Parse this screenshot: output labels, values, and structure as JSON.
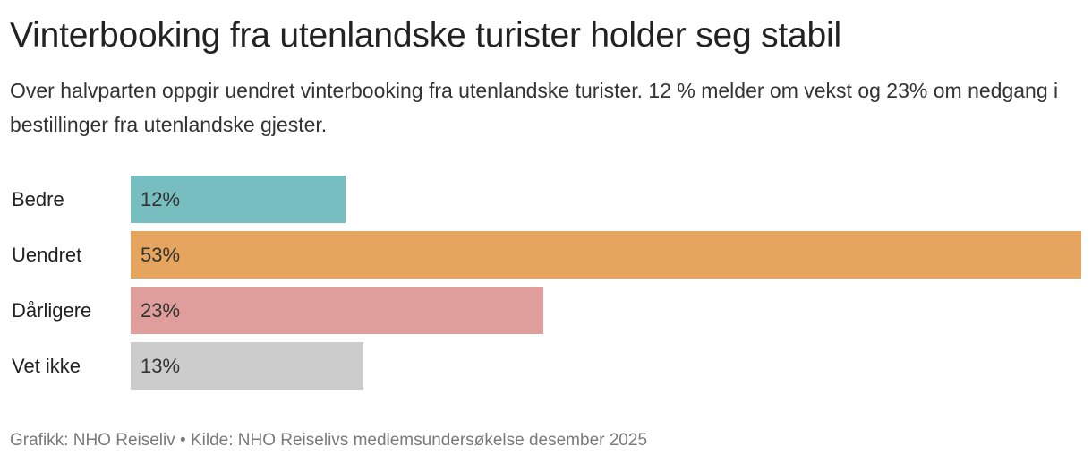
{
  "header": {
    "title": "Vinterbooking fra utenlandske turister holder seg stabil",
    "subtitle": "Over halvparten oppgir uendret vinterbooking fra utenlandske turister. 12 % melder om vekst og 23% om nedgang i bestillinger fra utenlandske gjester."
  },
  "rows": [
    {
      "label": "Bedre",
      "value_label": "12%",
      "value": 12,
      "color": "#77bec1"
    },
    {
      "label": "Uendret",
      "value_label": "53%",
      "value": 53,
      "color": "#e6a55e"
    },
    {
      "label": "Dårligere",
      "value_label": "23%",
      "value": 23,
      "color": "#df9e9b"
    },
    {
      "label": "Vet ikke",
      "value_label": "13%",
      "value": 13,
      "color": "#cccccc"
    }
  ],
  "footer": {
    "text": "Grafikk: NHO Reiseliv • Kilde: NHO Reiselivs medlemsundersøkelse desember 2025"
  },
  "chart_data": {
    "type": "bar",
    "orientation": "horizontal",
    "title": "Vinterbooking fra utenlandske turister holder seg stabil",
    "subtitle": "Over halvparten oppgir uendret vinterbooking fra utenlandske turister. 12 % melder om vekst og 23% om nedgang i bestillinger fra utenlandske gjester.",
    "categories": [
      "Bedre",
      "Uendret",
      "Dårligere",
      "Vet ikke"
    ],
    "values": [
      12,
      53,
      23,
      13
    ],
    "unit": "%",
    "colors": [
      "#77bec1",
      "#e6a55e",
      "#df9e9b",
      "#cccccc"
    ],
    "xlabel": "",
    "ylabel": "",
    "xlim": [
      0,
      53
    ],
    "grid": false,
    "legend": "none",
    "data_labels": true,
    "source": "Grafikk: NHO Reiseliv • Kilde: NHO Reiselivs medlemsundersøkelse desember 2025"
  }
}
